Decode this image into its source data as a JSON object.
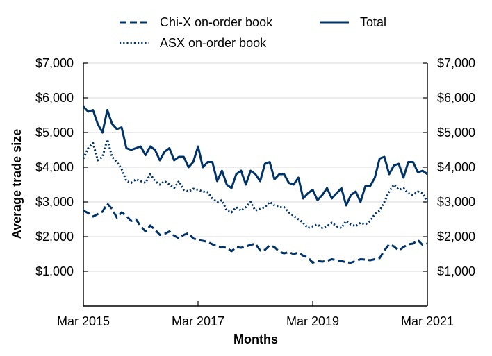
{
  "chart_data": {
    "type": "line",
    "title": "",
    "xlabel": "Months",
    "ylabel": "Average trade size",
    "x_tick_labels": [
      "Mar 2015",
      "Mar 2017",
      "Mar 2019",
      "Mar 2021"
    ],
    "x_tick_dates": [
      "2015-03",
      "2017-03",
      "2019-03",
      "2021-03"
    ],
    "ylim": [
      0,
      7000
    ],
    "y_ticks": [
      1000,
      2000,
      3000,
      4000,
      5000,
      6000,
      7000
    ],
    "y_tick_labels": [
      "$1,000",
      "$2,000",
      "$3,000",
      "$4,000",
      "$5,000",
      "$6,000",
      "$7,000"
    ],
    "grid": "horizontal",
    "right_axis": "mirror of left axis",
    "legend_position": "top-center",
    "color": "#003366",
    "x": [
      "2015-03",
      "2015-04",
      "2015-05",
      "2015-06",
      "2015-07",
      "2015-08",
      "2015-09",
      "2015-10",
      "2015-11",
      "2015-12",
      "2016-01",
      "2016-02",
      "2016-03",
      "2016-04",
      "2016-05",
      "2016-06",
      "2016-07",
      "2016-08",
      "2016-09",
      "2016-10",
      "2016-11",
      "2016-12",
      "2017-01",
      "2017-02",
      "2017-03",
      "2017-04",
      "2017-05",
      "2017-06",
      "2017-07",
      "2017-08",
      "2017-09",
      "2017-10",
      "2017-11",
      "2017-12",
      "2018-01",
      "2018-02",
      "2018-03",
      "2018-04",
      "2018-05",
      "2018-06",
      "2018-07",
      "2018-08",
      "2018-09",
      "2018-10",
      "2018-11",
      "2018-12",
      "2019-01",
      "2019-02",
      "2019-03",
      "2019-04",
      "2019-05",
      "2019-06",
      "2019-07",
      "2019-08",
      "2019-09",
      "2019-10",
      "2019-11",
      "2019-12",
      "2020-01",
      "2020-02",
      "2020-03",
      "2020-04",
      "2020-05",
      "2020-06",
      "2020-07",
      "2020-08",
      "2020-09",
      "2020-10",
      "2020-11",
      "2020-12",
      "2021-01",
      "2021-02",
      "2021-03"
    ],
    "series": [
      {
        "name": "Chi-X on-order book",
        "style": "dashed",
        "values": [
          2750,
          2680,
          2580,
          2650,
          2720,
          2950,
          2800,
          2550,
          2700,
          2600,
          2450,
          2500,
          2300,
          2150,
          2320,
          2200,
          2050,
          2080,
          2150,
          2030,
          1950,
          2050,
          2100,
          1950,
          1900,
          1880,
          1850,
          1780,
          1720,
          1700,
          1680,
          1580,
          1700,
          1680,
          1720,
          1760,
          1800,
          1600,
          1620,
          1750,
          1700,
          1560,
          1520,
          1550,
          1500,
          1540,
          1450,
          1400,
          1250,
          1300,
          1280,
          1300,
          1350,
          1320,
          1300,
          1260,
          1250,
          1300,
          1350,
          1340,
          1320,
          1350,
          1380,
          1600,
          1780,
          1720,
          1600,
          1700,
          1780,
          1800,
          1900,
          1760,
          1800
        ]
      },
      {
        "name": "ASX on-order book",
        "style": "dotted",
        "values": [
          4250,
          4550,
          4700,
          4200,
          4300,
          4800,
          4300,
          4150,
          3950,
          3600,
          3550,
          3650,
          3600,
          3550,
          3800,
          3600,
          3500,
          3600,
          3500,
          3400,
          3600,
          3350,
          3300,
          3380,
          3350,
          3300,
          3280,
          3100,
          3000,
          3050,
          2750,
          2700,
          2850,
          2750,
          2850,
          3000,
          2750,
          2800,
          2850,
          3000,
          2900,
          2850,
          2850,
          2700,
          2600,
          2500,
          2400,
          2250,
          2300,
          2350,
          2250,
          2300,
          2400,
          2300,
          2250,
          2450,
          2350,
          2300,
          2400,
          2350,
          2450,
          2650,
          2750,
          3000,
          3300,
          3500,
          3350,
          3400,
          3250,
          3200,
          3300,
          3250,
          3000
        ]
      },
      {
        "name": "Total",
        "style": "solid",
        "values": [
          5750,
          5600,
          5650,
          5250,
          5000,
          5650,
          5250,
          5100,
          5150,
          4550,
          4500,
          4550,
          4600,
          4350,
          4600,
          4500,
          4200,
          4450,
          4550,
          4200,
          4300,
          4300,
          4000,
          4150,
          4600,
          4000,
          4150,
          4150,
          3600,
          3900,
          3500,
          3400,
          3800,
          3900,
          3500,
          3900,
          3800,
          3600,
          4100,
          4150,
          3650,
          3800,
          3800,
          3550,
          3500,
          3700,
          3100,
          3250,
          3350,
          3050,
          3200,
          3400,
          3100,
          3250,
          3400,
          2900,
          3200,
          3300,
          3000,
          3450,
          3450,
          3700,
          4250,
          4300,
          3800,
          4050,
          4100,
          3700,
          4150,
          4150,
          3850,
          3900,
          3800
        ]
      }
    ]
  }
}
